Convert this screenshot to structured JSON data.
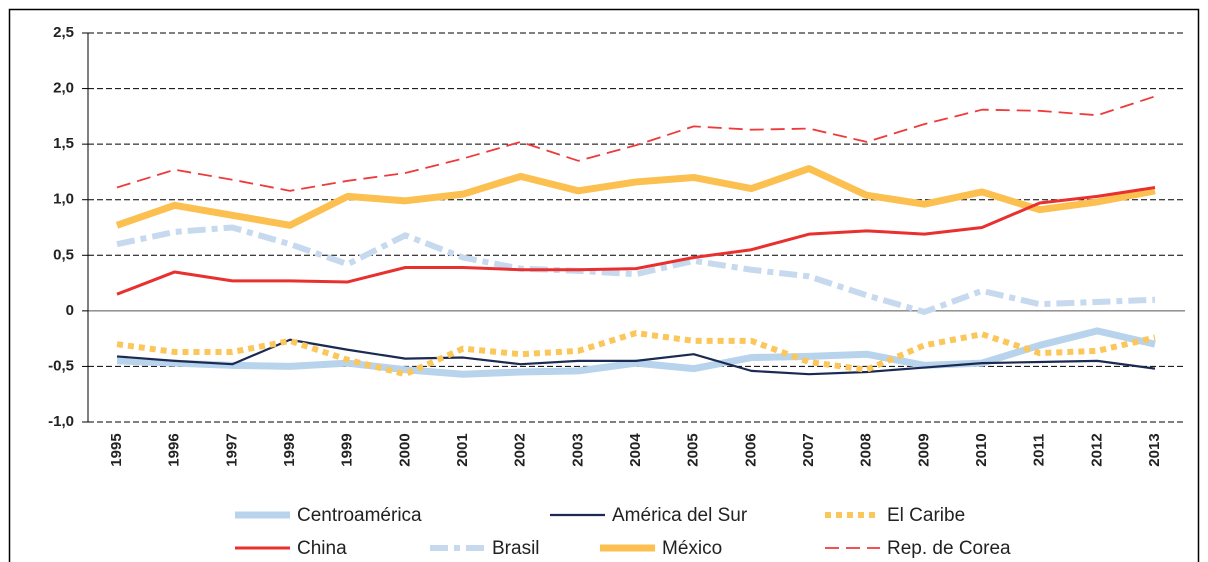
{
  "chart_data": {
    "type": "line",
    "categories": [
      "1995",
      "1996",
      "1997",
      "1998",
      "1999",
      "2000",
      "2001",
      "2002",
      "2003",
      "2004",
      "2005",
      "2006",
      "2007",
      "2008",
      "2009",
      "2010",
      "2011",
      "2012",
      "2013"
    ],
    "ylim": [
      -1.0,
      2.5
    ],
    "yticks": [
      {
        "value": -1.0,
        "label": "-1,0"
      },
      {
        "value": -0.5,
        "label": "-0,5"
      },
      0,
      {
        "value": 0.5,
        "label": "0,5"
      },
      {
        "value": 1.0,
        "label": "1,0"
      },
      {
        "value": 1.5,
        "label": "1,5"
      },
      {
        "value": 2.0,
        "label": "2,0"
      },
      {
        "value": 2.5,
        "label": "2,5"
      }
    ],
    "grid": true,
    "series": [
      {
        "name": "Centroamérica",
        "color": "#b8d3ec",
        "style": "thick",
        "values": [
          -0.45,
          -0.47,
          -0.49,
          -0.5,
          -0.47,
          -0.53,
          -0.57,
          -0.55,
          -0.54,
          -0.47,
          -0.52,
          -0.42,
          -0.41,
          -0.39,
          -0.49,
          -0.47,
          -0.31,
          -0.18,
          -0.3
        ]
      },
      {
        "name": "América del Sur",
        "color": "#1b2a52",
        "style": "thin",
        "values": [
          -0.41,
          -0.45,
          -0.48,
          -0.26,
          -0.35,
          -0.43,
          -0.42,
          -0.48,
          -0.45,
          -0.45,
          -0.39,
          -0.54,
          -0.57,
          -0.55,
          -0.51,
          -0.47,
          -0.46,
          -0.45,
          -0.52
        ]
      },
      {
        "name": "El Caribe",
        "color": "#fbc65a",
        "style": "dotted",
        "values": [
          -0.3,
          -0.37,
          -0.37,
          -0.27,
          -0.44,
          -0.57,
          -0.34,
          -0.39,
          -0.36,
          -0.2,
          -0.27,
          -0.27,
          -0.46,
          -0.53,
          -0.31,
          -0.21,
          -0.38,
          -0.36,
          -0.24
        ]
      },
      {
        "name": "China",
        "color": "#e8302f",
        "style": "solid",
        "values": [
          0.15,
          0.35,
          0.27,
          0.27,
          0.26,
          0.39,
          0.39,
          0.37,
          0.37,
          0.38,
          0.48,
          0.55,
          0.69,
          0.72,
          0.69,
          0.75,
          0.97,
          1.03,
          1.11
        ]
      },
      {
        "name": "Brasil",
        "color": "#c6d9ef",
        "style": "dashdot",
        "values": [
          0.6,
          0.71,
          0.75,
          0.6,
          0.42,
          0.68,
          0.48,
          0.38,
          0.36,
          0.33,
          0.45,
          0.37,
          0.31,
          0.14,
          -0.01,
          0.18,
          0.06,
          0.08,
          0.1
        ]
      },
      {
        "name": "México",
        "color": "#fbc050",
        "style": "thick",
        "values": [
          0.77,
          0.95,
          0.86,
          0.77,
          1.03,
          0.99,
          1.05,
          1.21,
          1.08,
          1.16,
          1.2,
          1.1,
          1.28,
          1.04,
          0.96,
          1.07,
          0.91,
          0.98,
          1.08
        ]
      },
      {
        "name": "Rep. de Corea",
        "color": "#ee3a3a",
        "style": "dashed",
        "values": [
          1.11,
          1.27,
          1.18,
          1.08,
          1.17,
          1.24,
          1.37,
          1.52,
          1.35,
          1.49,
          1.66,
          1.63,
          1.64,
          1.52,
          1.68,
          1.81,
          1.8,
          1.76,
          1.93
        ]
      }
    ]
  }
}
